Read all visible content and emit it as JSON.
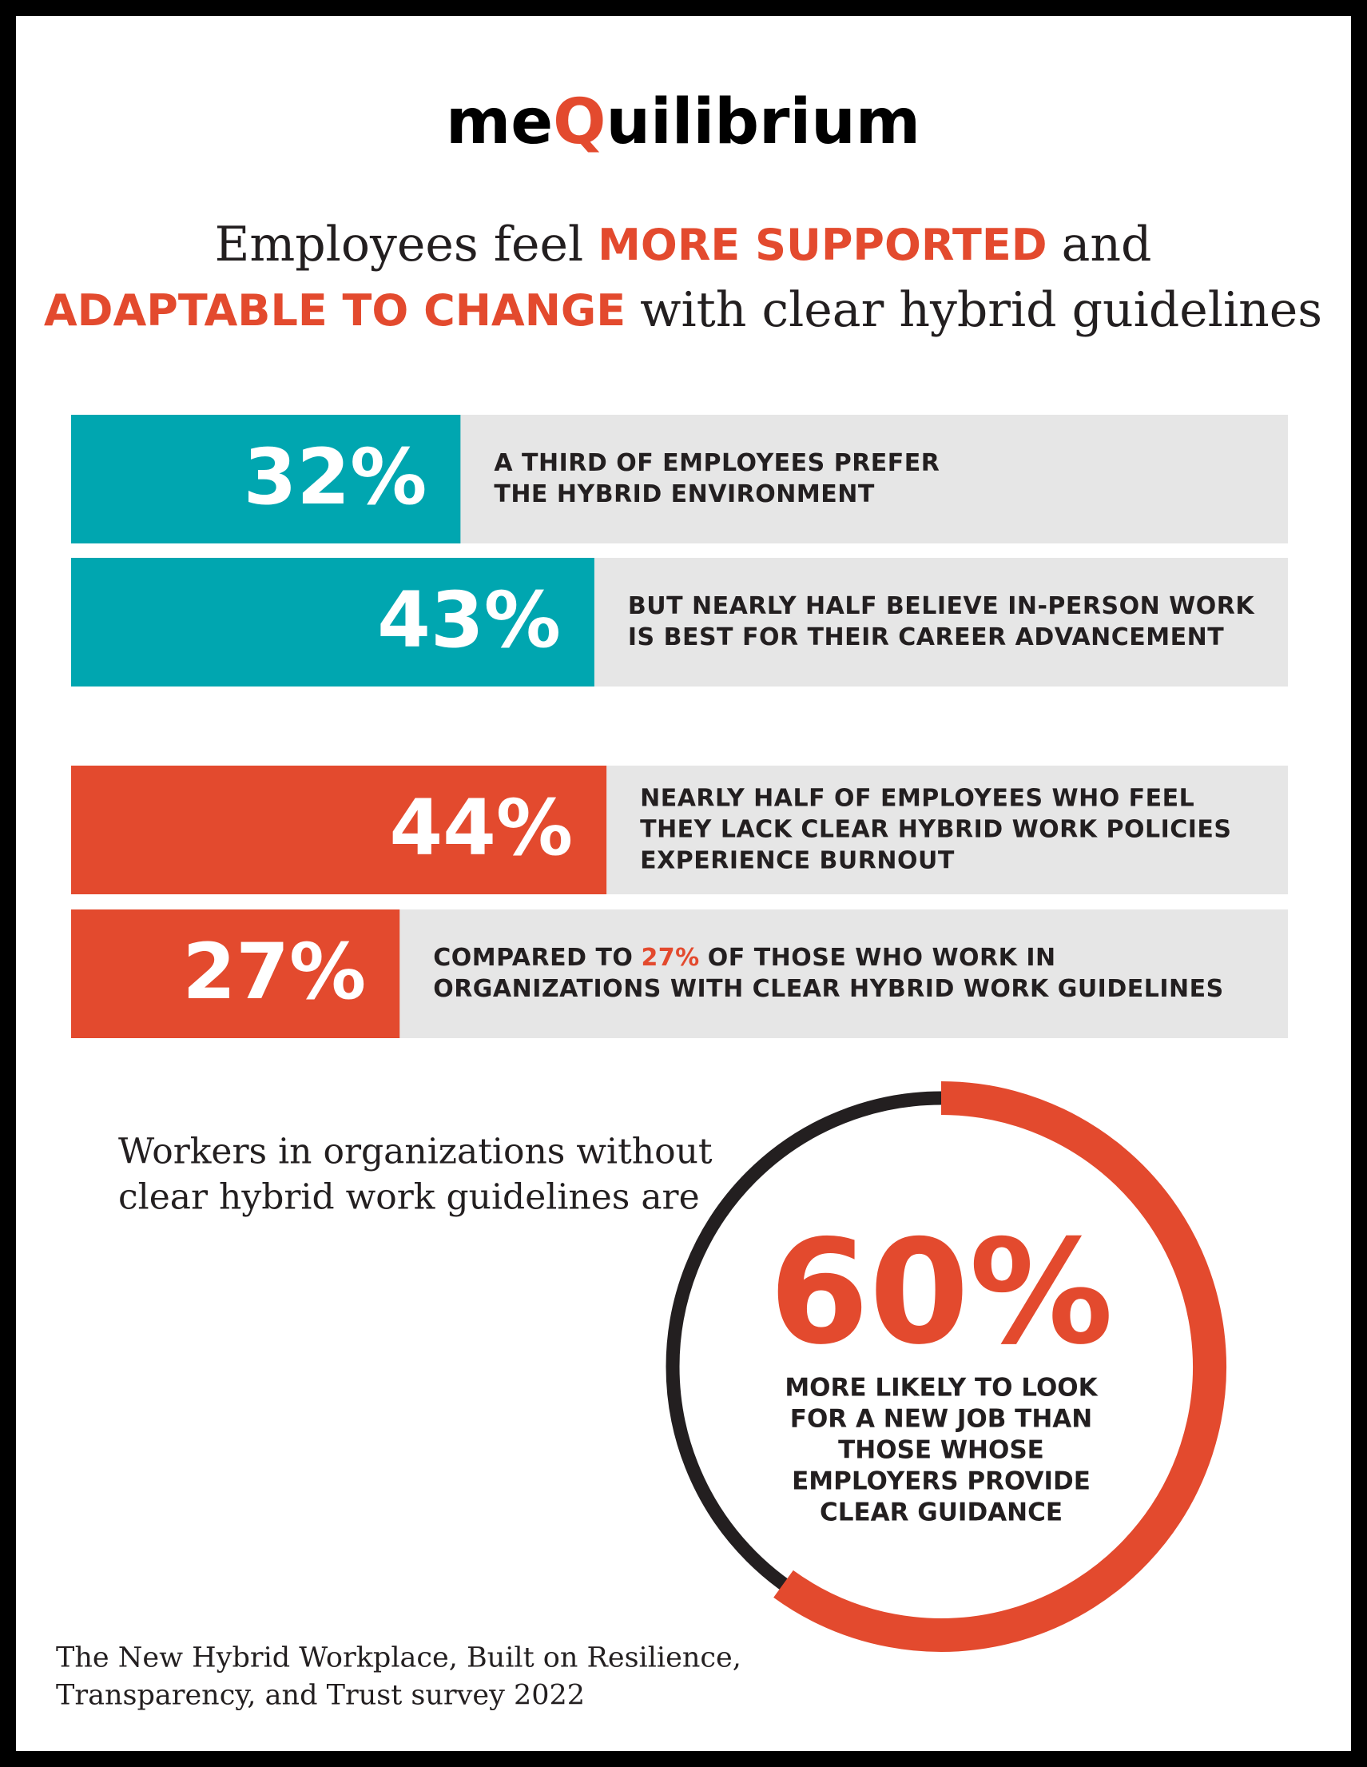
{
  "logo": {
    "parts": [
      "me",
      "Q",
      "uilibrium"
    ]
  },
  "headline": {
    "lines": [
      [
        {
          "text": "Employees feel",
          "emphasis": false
        },
        {
          "text": "MORE SUPPORTED",
          "emphasis": true
        },
        {
          "text": "and",
          "emphasis": false
        }
      ],
      [
        {
          "text": "ADAPTABLE TO CHANGE",
          "emphasis": true
        },
        {
          "text": "with clear hybrid guidelines",
          "emphasis": false
        }
      ]
    ]
  },
  "accent_color": "#e34a2e",
  "stats": [
    {
      "value": 32,
      "label": "32%",
      "color": "#00a6b0",
      "text": [
        [
          {
            "text": "A THIRD OF EMPLOYEES PREFER",
            "emphasis": false
          }
        ],
        [
          {
            "text": "THE HYBRID ENVIRONMENT",
            "emphasis": false
          }
        ]
      ]
    },
    {
      "value": 43,
      "label": "43%",
      "color": "#00a6b0",
      "text": [
        [
          {
            "text": "BUT NEARLY HALF BELIEVE IN-PERSON WORK",
            "emphasis": false
          }
        ],
        [
          {
            "text": "IS BEST FOR THEIR CAREER ADVANCEMENT",
            "emphasis": false
          }
        ]
      ]
    },
    {
      "value": 44,
      "label": "44%",
      "color": "#e34a2e",
      "text": [
        [
          {
            "text": "NEARLY HALF OF EMPLOYEES WHO FEEL",
            "emphasis": false
          }
        ],
        [
          {
            "text": "THEY LACK CLEAR HYBRID WORK POLICIES",
            "emphasis": false
          }
        ],
        [
          {
            "text": "EXPERIENCE BURNOUT",
            "emphasis": false
          }
        ]
      ]
    },
    {
      "value": 27,
      "label": "27%",
      "color": "#e34a2e",
      "text": [
        [
          {
            "text": "COMPARED TO",
            "emphasis": false
          },
          {
            "text": "27%",
            "emphasis": true
          },
          {
            "text": "OF THOSE WHO WORK IN",
            "emphasis": false
          }
        ],
        [
          {
            "text": "ORGANIZATIONS WITH CLEAR HYBRID WORK GUIDELINES",
            "emphasis": false
          }
        ]
      ]
    }
  ],
  "intro": {
    "lines": [
      "Workers in organizations without",
      "clear hybrid work guidelines are"
    ]
  },
  "ring": {
    "value": 60,
    "label": "60%",
    "color": "#e34a2e",
    "rest_color": "#231f20",
    "text": [
      "MORE LIKELY TO LOOK",
      "FOR A NEW JOB THAN",
      "THOSE WHOSE",
      "EMPLOYERS PROVIDE",
      "CLEAR GUIDANCE"
    ]
  },
  "source": {
    "lines": [
      "The New Hybrid Workplace, Built on Resilience,",
      "Transparency, and Trust survey 2022"
    ]
  }
}
